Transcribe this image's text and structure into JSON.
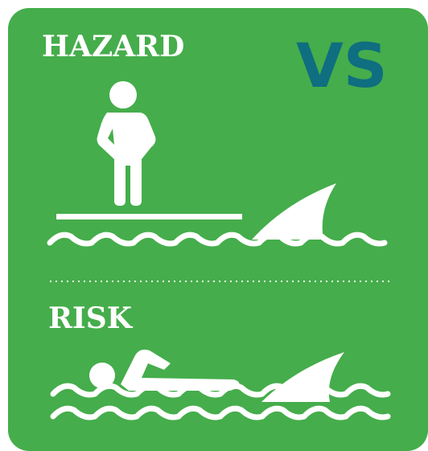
{
  "hazard": {
    "label": "HAZARD"
  },
  "versus": "VS",
  "risk": {
    "label": "RISK"
  }
}
